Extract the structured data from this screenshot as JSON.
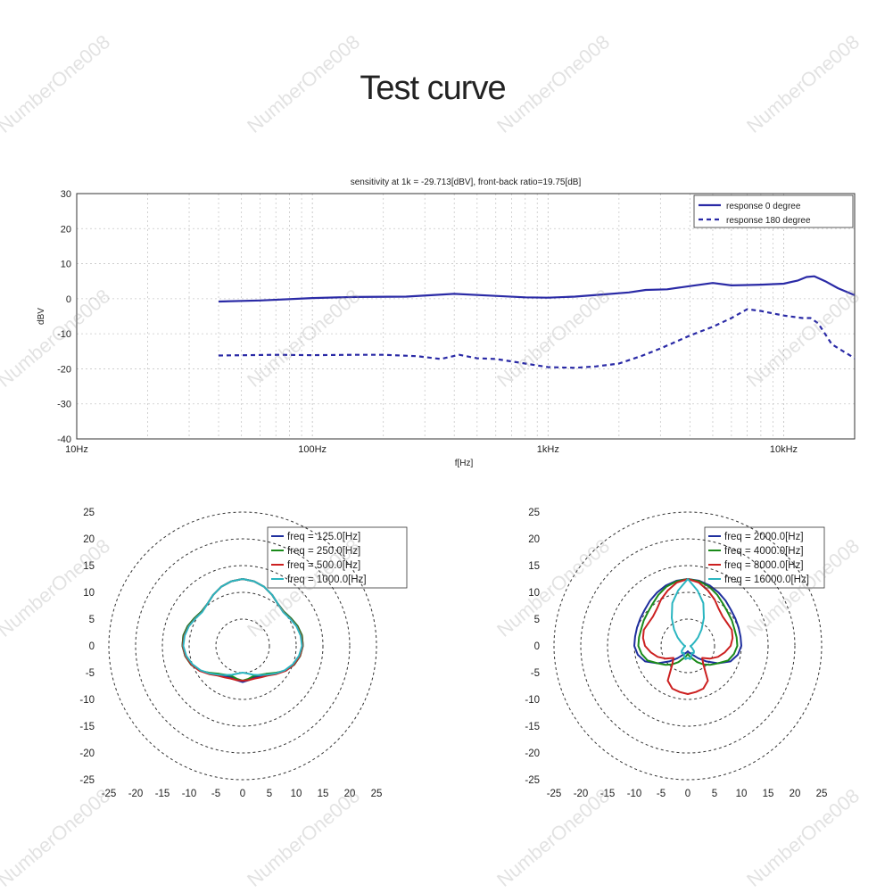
{
  "page": {
    "title": "Test curve"
  },
  "watermark": "NumberOne008",
  "chart_data": [
    {
      "type": "line",
      "title": "sensitivity at 1k = -29.713[dBV], front-back ratio=19.75[dB]",
      "xlabel": "f[Hz]",
      "ylabel": "dBV",
      "xscale": "log",
      "xlim": [
        10,
        20000
      ],
      "ylim": [
        -40,
        30
      ],
      "xticks": [
        {
          "v": 10,
          "label": "10Hz"
        },
        {
          "v": 100,
          "label": "100Hz"
        },
        {
          "v": 1000,
          "label": "1kHz"
        },
        {
          "v": 10000,
          "label": "10kHz"
        }
      ],
      "yticks": [
        30,
        20,
        10,
        0,
        -10,
        -20,
        -30,
        -40
      ],
      "grid": true,
      "legend_position": "top-right",
      "series": [
        {
          "name": "response 0 degree",
          "color": "#2a2aa6",
          "dash": "solid",
          "x": [
            40,
            60,
            100,
            150,
            250,
            400,
            600,
            800,
            1000,
            1300,
            1700,
            2200,
            2600,
            3200,
            4000,
            5000,
            6000,
            7000,
            8000,
            10000,
            11500,
            12500,
            13500,
            15000,
            17000,
            20000
          ],
          "y": [
            -0.8,
            -0.5,
            0.2,
            0.5,
            0.6,
            1.4,
            0.8,
            0.4,
            0.3,
            0.6,
            1.2,
            1.8,
            2.5,
            2.7,
            3.6,
            4.5,
            3.8,
            3.9,
            4.0,
            4.3,
            5.2,
            6.2,
            6.4,
            5.0,
            3.0,
            1.0
          ]
        },
        {
          "name": "response 180 degree",
          "color": "#2a2aa6",
          "dash": "dashed",
          "x": [
            40,
            70,
            100,
            150,
            200,
            280,
            350,
            420,
            500,
            600,
            800,
            1000,
            1300,
            1600,
            2000,
            2500,
            3000,
            4000,
            5000,
            6000,
            7000,
            8000,
            10000,
            12000,
            13000,
            14000,
            16000,
            20000
          ],
          "y": [
            -16.2,
            -16.0,
            -16.1,
            -16.0,
            -16.0,
            -16.4,
            -17.2,
            -16.0,
            -17.0,
            -17.2,
            -18.5,
            -19.5,
            -19.7,
            -19.3,
            -18.5,
            -16.3,
            -14.2,
            -10.5,
            -8.0,
            -5.5,
            -3.0,
            -3.5,
            -4.8,
            -5.5,
            -5.5,
            -7.0,
            -13.0,
            -17.0
          ]
        }
      ]
    },
    {
      "type": "polar",
      "rlim": [
        -25,
        25
      ],
      "ticks": [
        25,
        20,
        15,
        10,
        5,
        0,
        -5,
        -10,
        -15,
        -20,
        -25
      ],
      "legend_position": "top-right",
      "series": [
        {
          "name": "freq = 125.0[Hz]",
          "color": "#1f2f9e",
          "r": [
            [
              0,
              0
            ],
            [
              10,
              -0.5
            ],
            [
              20,
              -1.5
            ],
            [
              30,
              -3
            ],
            [
              40,
              -4.5
            ],
            [
              50,
              -5
            ],
            [
              60,
              -4.2
            ],
            [
              70,
              -3.2
            ],
            [
              80,
              -2.5
            ],
            [
              90,
              -2.5
            ],
            [
              100,
              -3.2
            ],
            [
              110,
              -4.5
            ],
            [
              120,
              -6.5
            ],
            [
              130,
              -9
            ],
            [
              140,
              -11
            ],
            [
              150,
              -12
            ],
            [
              160,
              -12.5
            ],
            [
              170,
              -12
            ],
            [
              180,
              -11.5
            ]
          ]
        },
        {
          "name": "freq = 250.0[Hz]",
          "color": "#1a8a1a",
          "r": [
            [
              0,
              0
            ],
            [
              10,
              -0.5
            ],
            [
              20,
              -1.5
            ],
            [
              30,
              -3
            ],
            [
              40,
              -4.5
            ],
            [
              50,
              -5
            ],
            [
              60,
              -4.2
            ],
            [
              70,
              -3.2
            ],
            [
              80,
              -2.5
            ],
            [
              90,
              -2.5
            ],
            [
              100,
              -3.2
            ],
            [
              110,
              -4.5
            ],
            [
              120,
              -6.5
            ],
            [
              130,
              -9.3
            ],
            [
              140,
              -11.4
            ],
            [
              150,
              -12.5
            ],
            [
              160,
              -13
            ],
            [
              170,
              -12.5
            ],
            [
              180,
              -12
            ]
          ]
        },
        {
          "name": "freq = 500.0[Hz]",
          "color": "#cc2020",
          "r": [
            [
              0,
              0
            ],
            [
              10,
              -0.5
            ],
            [
              20,
              -1.5
            ],
            [
              30,
              -3
            ],
            [
              40,
              -4.5
            ],
            [
              50,
              -5.2
            ],
            [
              60,
              -4.5
            ],
            [
              70,
              -3.5
            ],
            [
              80,
              -2.8
            ],
            [
              90,
              -2.6
            ],
            [
              100,
              -3.3
            ],
            [
              110,
              -4.6
            ],
            [
              120,
              -6.4
            ],
            [
              130,
              -8.6
            ],
            [
              140,
              -10.5
            ],
            [
              150,
              -11.4
            ],
            [
              160,
              -12
            ],
            [
              170,
              -12
            ],
            [
              180,
              -12
            ]
          ]
        },
        {
          "name": "freq = 1000.0[Hz]",
          "color": "#2ab5c0",
          "r": [
            [
              0,
              0
            ],
            [
              10,
              -0.5
            ],
            [
              20,
              -1.5
            ],
            [
              30,
              -3
            ],
            [
              40,
              -4.5
            ],
            [
              50,
              -5.3
            ],
            [
              60,
              -4.6
            ],
            [
              70,
              -3.6
            ],
            [
              80,
              -3
            ],
            [
              90,
              -2.8
            ],
            [
              100,
              -3.6
            ],
            [
              110,
              -5
            ],
            [
              120,
              -6.8
            ],
            [
              130,
              -9
            ],
            [
              140,
              -11
            ],
            [
              150,
              -12.4
            ],
            [
              160,
              -13.5
            ],
            [
              170,
              -14.5
            ],
            [
              180,
              -15
            ]
          ]
        }
      ]
    },
    {
      "type": "polar",
      "rlim": [
        -25,
        25
      ],
      "ticks": [
        25,
        20,
        15,
        10,
        5,
        0,
        -5,
        -10,
        -15,
        -20,
        -25
      ],
      "legend_position": "top-right",
      "series": [
        {
          "name": "freq = 2000.0[Hz]",
          "color": "#1f2f9e",
          "r": [
            [
              0,
              0
            ],
            [
              10,
              -0.3
            ],
            [
              20,
              -1
            ],
            [
              30,
              -2
            ],
            [
              40,
              -3
            ],
            [
              50,
              -4
            ],
            [
              60,
              -4.5
            ],
            [
              70,
              -4.8
            ],
            [
              80,
              -5
            ],
            [
              90,
              -5
            ],
            [
              100,
              -6
            ],
            [
              110,
              -8
            ],
            [
              120,
              -12
            ],
            [
              130,
              -16
            ],
            [
              140,
              -19
            ],
            [
              150,
              -21
            ],
            [
              160,
              -22
            ],
            [
              170,
              -22.5
            ],
            [
              180,
              -23
            ]
          ]
        },
        {
          "name": "freq = 4000.0[Hz]",
          "color": "#1a8a1a",
          "r": [
            [
              0,
              0
            ],
            [
              10,
              -0.5
            ],
            [
              20,
              -1.5
            ],
            [
              30,
              -3
            ],
            [
              40,
              -4.5
            ],
            [
              50,
              -5.5
            ],
            [
              60,
              -6
            ],
            [
              70,
              -6.5
            ],
            [
              80,
              -6.5
            ],
            [
              90,
              -6.5
            ],
            [
              100,
              -7.5
            ],
            [
              110,
              -9
            ],
            [
              120,
              -12
            ],
            [
              130,
              -14
            ],
            [
              140,
              -16
            ],
            [
              150,
              -18
            ],
            [
              160,
              -20
            ],
            [
              170,
              -21
            ],
            [
              180,
              -22
            ]
          ]
        },
        {
          "name": "freq = 8000.0[Hz]",
          "color": "#cc2020",
          "r": [
            [
              0,
              0
            ],
            [
              10,
              -1
            ],
            [
              20,
              -3
            ],
            [
              30,
              -5
            ],
            [
              40,
              -7
            ],
            [
              50,
              -8
            ],
            [
              60,
              -8
            ],
            [
              70,
              -7.5
            ],
            [
              80,
              -8
            ],
            [
              90,
              -9
            ],
            [
              100,
              -11
            ],
            [
              110,
              -13
            ],
            [
              120,
              -15.5
            ],
            [
              130,
              -18
            ],
            [
              140,
              -16
            ],
            [
              150,
              -10
            ],
            [
              160,
              -8
            ],
            [
              170,
              -7.5
            ],
            [
              180,
              -7
            ]
          ]
        },
        {
          "name": "freq = 16000.0[Hz]",
          "color": "#2ab5c0",
          "r": [
            [
              0,
              0
            ],
            [
              10,
              -4
            ],
            [
              20,
              -8
            ],
            [
              30,
              -13
            ],
            [
              40,
              -17
            ],
            [
              50,
              -20
            ],
            [
              60,
              -22
            ],
            [
              70,
              -23
            ],
            [
              80,
              -23.5
            ],
            [
              90,
              -24
            ],
            [
              100,
              -24
            ],
            [
              110,
              -23.5
            ],
            [
              120,
              -23
            ],
            [
              130,
              -22
            ],
            [
              140,
              -21.5
            ],
            [
              150,
              -22
            ],
            [
              160,
              -21
            ],
            [
              170,
              -20
            ],
            [
              180,
              -20.5
            ]
          ]
        }
      ]
    }
  ]
}
